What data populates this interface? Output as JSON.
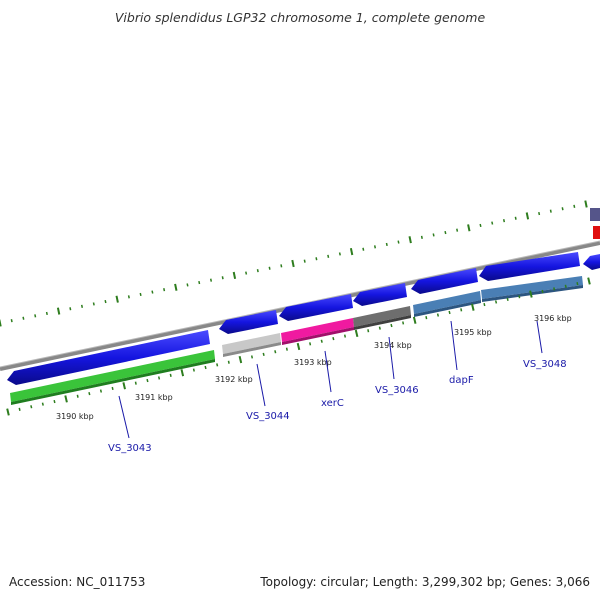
{
  "title": "Vibrio splendidus LGP32 chromosome 1, complete genome",
  "footer": {
    "accession": "Accession: NC_011753",
    "summary": "Topology: circular; Length: 3,299,302 bp; Genes: 3,066"
  },
  "colors": {
    "backbone": "#8a8a8a",
    "tick": "#2e7d1e",
    "label_line": "#1a1aa8",
    "label_text": "#1a1aa8"
  },
  "scale": {
    "unit": "kbp",
    "labels": [
      "3190 kbp",
      "3191 kbp",
      "3192 kbp",
      "3193 kbp",
      "3194 kbp",
      "3195 kbp",
      "3196 kbp"
    ]
  },
  "genes": [
    {
      "id": "VS_3043",
      "label": "VS_3043",
      "strand": "reverse",
      "top_color": "#1515e0",
      "bottom_color": "#3ac43a",
      "icon": "arrow-left-gene"
    },
    {
      "id": "VS_3044",
      "label": "VS_3044",
      "strand": "reverse",
      "top_color": "#1515e0",
      "bottom_color": "#c8c8c8",
      "icon": "arrow-left-gene"
    },
    {
      "id": "xerC",
      "label": "xerC",
      "strand": "reverse",
      "top_color": "#1515e0",
      "bottom_color": "#f01aa0",
      "icon": "arrow-left-gene"
    },
    {
      "id": "VS_3046",
      "label": "VS_3046",
      "strand": "reverse",
      "top_color": "#1515e0",
      "bottom_color": "#6e6e6e",
      "icon": "arrow-left-gene"
    },
    {
      "id": "dapF",
      "label": "dapF",
      "strand": "reverse",
      "top_color": "#1515e0",
      "bottom_color": "#4a7fb5",
      "icon": "arrow-left-gene"
    },
    {
      "id": "VS_3048",
      "label": "VS_3048",
      "strand": "reverse",
      "top_color": "#1515e0",
      "bottom_color": "#4a7fb5",
      "icon": "arrow-left-gene"
    }
  ],
  "edge_features": [
    {
      "color": "#55558a",
      "icon": "partial-gene"
    },
    {
      "color": "#e01010",
      "icon": "partial-gene"
    },
    {
      "color": "#1515e0",
      "icon": "partial-gene"
    }
  ]
}
